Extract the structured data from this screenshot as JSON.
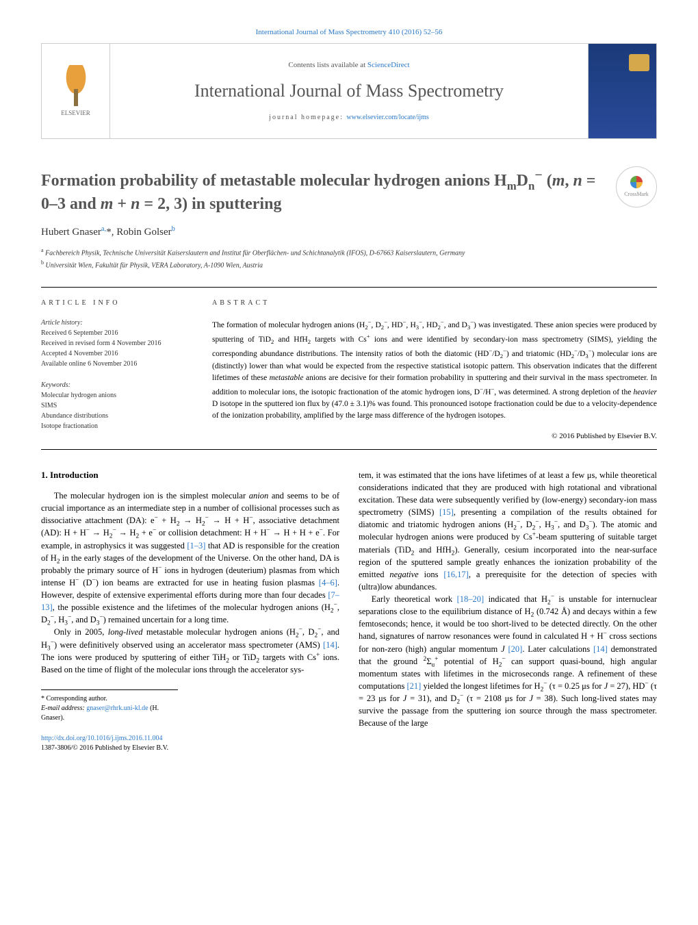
{
  "top_link": {
    "journal": "International Journal of Mass Spectrometry 410 (2016) 52–56"
  },
  "header": {
    "contents_prefix": "Contents lists available at ",
    "contents_link": "ScienceDirect",
    "journal_name": "International Journal of Mass Spectrometry",
    "homepage_prefix": "journal homepage: ",
    "homepage_link": "www.elsevier.com/locate/ijms",
    "publisher_logo": "ELSEVIER"
  },
  "crossmark": "CrossMark",
  "title_html": "Formation probability of metastable molecular hydrogen anions H<sub>m</sub>D<sub>n</sub><sup>−</sup> (<i>m</i>, <i>n</i> = 0–3 and <i>m</i> + <i>n</i> = 2, 3) in sputtering",
  "authors_html": "Hubert Gnaser<sup>a,</sup>*, Robin Golser<sup>b</sup>",
  "affiliations": {
    "a": "Fachbereich Physik, Technische Universität Kaiserslautern and Institut für Oberflächen- und Schichtanalytik (IFOS), D-67663 Kaiserslautern, Germany",
    "b": "Universität Wien, Fakultät für Physik, VERA Laboratory, A-1090 Wien, Austria"
  },
  "article_info": {
    "heading": "article info",
    "history_label": "Article history:",
    "history": [
      "Received 6 September 2016",
      "Received in revised form 4 November 2016",
      "Accepted 4 November 2016",
      "Available online 6 November 2016"
    ],
    "keywords_label": "Keywords:",
    "keywords": [
      "Molecular hydrogen anions",
      "SIMS",
      "Abundance distributions",
      "Isotope fractionation"
    ]
  },
  "abstract": {
    "heading": "abstract",
    "text_html": "The formation of molecular hydrogen anions (H<sub>2</sub><sup>−</sup>, D<sub>2</sub><sup>−</sup>, HD<sup>−</sup>, H<sub>3</sub><sup>−</sup>, HD<sub>2</sub><sup>−</sup>, and D<sub>3</sub><sup>−</sup>) was investigated. These anion species were produced by sputtering of TiD<sub>2</sub> and HfH<sub>2</sub> targets with Cs<sup>+</sup> ions and were identified by secondary-ion mass spectrometry (SIMS), yielding the corresponding abundance distributions. The intensity ratios of both the diatomic (HD<sup>−</sup>/D<sub>2</sub><sup>−</sup>) and triatomic (HD<sub>2</sub><sup>−</sup>/D<sub>3</sub><sup>−</sup>) molecular ions are (distinctly) lower than what would be expected from the respective statistical isotopic pattern. This observation indicates that the different lifetimes of these <i>metastable</i> anions are decisive for their formation probability in sputtering and their survival in the mass spectrometer. In addition to molecular ions, the isotopic fractionation of the atomic hydrogen ions, D<sup>−</sup>/H<sup>−</sup>, was determined. A strong depletion of the <i>heavier</i> D isotope in the sputtered ion flux by (47.0 ± 3.1)% was found. This pronounced isotope fractionation could be due to a velocity-dependence of the ionization probability, amplified by the large mass difference of the hydrogen isotopes.",
    "copyright": "© 2016 Published by Elsevier B.V."
  },
  "body": {
    "section_number": "1.",
    "section_title": "Introduction",
    "paragraphs": [
      "The molecular hydrogen ion is the simplest molecular <i>anion</i> and seems to be of crucial importance as an intermediate step in a number of collisional processes such as dissociative attachment (DA): e<sup>−</sup> + H<sub>2</sub> → H<sub>2</sub><sup>−</sup> → H + H<sup>−</sup>, associative detachment (AD): H + H<sup>−</sup> → H<sub>2</sub><sup>−</sup> → H<sub>2</sub> + e<sup>−</sup> or collision detachment: H + H<sup>−</sup> → H + H + e<sup>−</sup>. For example, in astrophysics it was suggested <a>[1–3]</a> that AD is responsible for the creation of H<sub>2</sub> in the early stages of the development of the Universe. On the other hand, DA is probably the primary source of H<sup>−</sup> ions in hydrogen (deuterium) plasmas from which intense H<sup>−</sup> (D<sup>−</sup>) ion beams are extracted for use in heating fusion plasmas <a>[4–6]</a>. However, despite of extensive experimental efforts during more than four decades <a>[7–13]</a>, the possible existence and the lifetimes of the molecular hydrogen anions (H<sub>2</sub><sup>−</sup>, D<sub>2</sub><sup>−</sup>, H<sub>3</sub><sup>−</sup>, and D<sub>3</sub><sup>−</sup>) remained uncertain for a long time.",
      "Only in 2005, <i>long-lived</i> metastable molecular hydrogen anions (H<sub>2</sub><sup>−</sup>, D<sub>2</sub><sup>−</sup>, and H<sub>3</sub><sup>−</sup>) were definitively observed using an accelerator mass spectrometer (AMS) <a>[14]</a>. The ions were produced by sputtering of either TiH<sub>2</sub> or TiD<sub>2</sub> targets with Cs<sup>+</sup> ions. Based on the time of flight of the molecular ions through the accelerator sys-",
      "tem, it was estimated that the ions have lifetimes of at least a few μs, while theoretical considerations indicated that they are produced with high rotational and vibrational excitation. These data were subsequently verified by (low-energy) secondary-ion mass spectrometry (SIMS) <a>[15]</a>, presenting a compilation of the results obtained for diatomic and triatomic hydrogen anions (H<sub>2</sub><sup>−</sup>, D<sub>2</sub><sup>−</sup>, H<sub>3</sub><sup>−</sup>, and D<sub>3</sub><sup>−</sup>). The atomic and molecular hydrogen anions were produced by Cs<sup>+</sup>-beam sputtering of suitable target materials (TiD<sub>2</sub> and HfH<sub>2</sub>). Generally, cesium incorporated into the near-surface region of the sputtered sample greatly enhances the ionization probability of the emitted <i>negative</i> ions <a>[16,17]</a>, a prerequisite for the detection of species with (ultra)low abundances.",
      "Early theoretical work <a>[18–20]</a> indicated that H<sub>2</sub><sup>−</sup> is unstable for internuclear separations close to the equilibrium distance of H<sub>2</sub> (0.742 Å) and decays within a few femtoseconds; hence, it would be too short-lived to be detected directly. On the other hand, signatures of narrow resonances were found in calculated H + H<sup>−</sup> cross sections for non-zero (high) angular momentum <i>J</i> <a>[20]</a>. Later calculations <a>[14]</a> demonstrated that the ground <sup>2</sup>Σ<sub>u</sub><sup>+</sup> potential of H<sub>2</sub><sup>−</sup> can support quasi-bound, high angular momentum states with lifetimes in the microseconds range. A refinement of these computations <a>[21]</a> yielded the longest lifetimes for H<sub>2</sub><sup>−</sup> (τ = 0.25 μs for <i>J</i> = 27), HD<sup>−</sup> (τ = 23 μs for <i>J</i> = 31), and D<sub>2</sub><sup>−</sup> (τ = 2108 μs for <i>J</i> = 38). Such long-lived states may survive the passage from the sputtering ion source through the mass spectrometer. Because of the large"
    ]
  },
  "footnote": {
    "corresponding": "* Corresponding author.",
    "email_label": "E-mail address:",
    "email": "gnaser@rhrk.uni-kl.de",
    "email_name": "(H. Gnaser)."
  },
  "footer": {
    "doi": "http://dx.doi.org/10.1016/j.ijms.2016.11.004",
    "issn": "1387-3806/© 2016 Published by Elsevier B.V."
  },
  "colors": {
    "link": "#2878c8",
    "text": "#000000",
    "title_gray": "#555555",
    "border": "#cccccc",
    "bg": "#ffffff"
  }
}
